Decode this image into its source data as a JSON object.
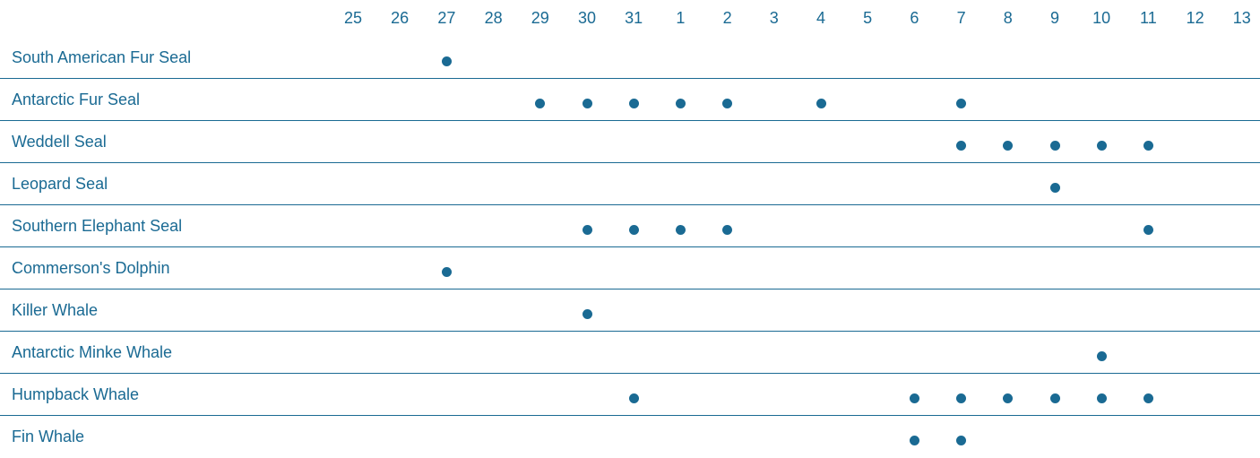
{
  "colors": {
    "text": "#1a6a93",
    "dot": "#1a6a93",
    "divider": "#1a6a93",
    "background": "#ffffff"
  },
  "chart_data": {
    "type": "scatter",
    "days": [
      "25",
      "26",
      "27",
      "28",
      "29",
      "30",
      "31",
      "1",
      "2",
      "3",
      "4",
      "5",
      "6",
      "7",
      "8",
      "9",
      "10",
      "11",
      "12",
      "13"
    ],
    "species": [
      {
        "name": "South American Fur Seal",
        "seen": [
          "27"
        ]
      },
      {
        "name": "Antarctic Fur Seal",
        "seen": [
          "29",
          "30",
          "31",
          "1",
          "2",
          "4",
          "7"
        ]
      },
      {
        "name": "Weddell Seal",
        "seen": [
          "7",
          "8",
          "9",
          "10",
          "11"
        ]
      },
      {
        "name": "Leopard Seal",
        "seen": [
          "9"
        ]
      },
      {
        "name": "Southern Elephant Seal",
        "seen": [
          "30",
          "31",
          "1",
          "2",
          "11"
        ]
      },
      {
        "name": "Commerson's Dolphin",
        "seen": [
          "27"
        ]
      },
      {
        "name": "Killer Whale",
        "seen": [
          "30"
        ]
      },
      {
        "name": "Antarctic Minke Whale",
        "seen": [
          "10"
        ]
      },
      {
        "name": "Humpback Whale",
        "seen": [
          "31",
          "6",
          "7",
          "8",
          "9",
          "10",
          "11"
        ]
      },
      {
        "name": "Fin Whale",
        "seen": [
          "6",
          "7"
        ]
      }
    ]
  }
}
